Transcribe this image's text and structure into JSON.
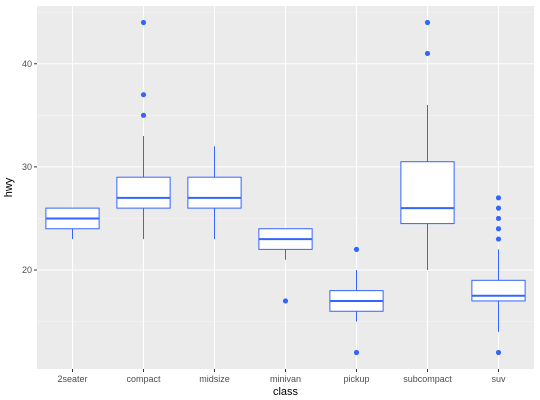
{
  "chart_data": {
    "type": "boxplot",
    "title": "",
    "xlabel": "class",
    "ylabel": "hwy",
    "categories": [
      "2seater",
      "compact",
      "midsize",
      "minivan",
      "pickup",
      "subcompact",
      "suv"
    ],
    "ylim": [
      10.4,
      45.6
    ],
    "y_ticks": [
      20,
      30,
      40
    ],
    "grid": true,
    "legend": "none",
    "colors": {
      "panel_bg": "#ebebeb",
      "grid_major": "#ffffff",
      "grid_minor": "#f5f5f5",
      "box_stroke": "#3366ff",
      "box_fill": "#ffffff",
      "outlier": "#3366ff"
    },
    "boxes": [
      {
        "category": "2seater",
        "lower_whisker": 23,
        "q1": 24,
        "median": 25,
        "q3": 26,
        "upper_whisker": 26,
        "outliers": []
      },
      {
        "category": "compact",
        "lower_whisker": 23,
        "q1": 26,
        "median": 27,
        "q3": 29,
        "upper_whisker": 33,
        "outliers": [
          35,
          37,
          44
        ]
      },
      {
        "category": "midsize",
        "lower_whisker": 23,
        "q1": 26,
        "median": 27,
        "q3": 29,
        "upper_whisker": 32,
        "outliers": []
      },
      {
        "category": "minivan",
        "lower_whisker": 21,
        "q1": 22,
        "median": 23,
        "q3": 24,
        "upper_whisker": 24,
        "outliers": [
          17
        ]
      },
      {
        "category": "pickup",
        "lower_whisker": 15,
        "q1": 16,
        "median": 17,
        "q3": 18,
        "upper_whisker": 20,
        "outliers": [
          12,
          22
        ]
      },
      {
        "category": "subcompact",
        "lower_whisker": 20,
        "q1": 24.5,
        "median": 26,
        "q3": 30.5,
        "upper_whisker": 36,
        "outliers": [
          41,
          44
        ]
      },
      {
        "category": "suv",
        "lower_whisker": 14,
        "q1": 17,
        "median": 17.5,
        "q3": 19,
        "upper_whisker": 22,
        "outliers": [
          12,
          23,
          24,
          25,
          26,
          27
        ]
      }
    ]
  }
}
